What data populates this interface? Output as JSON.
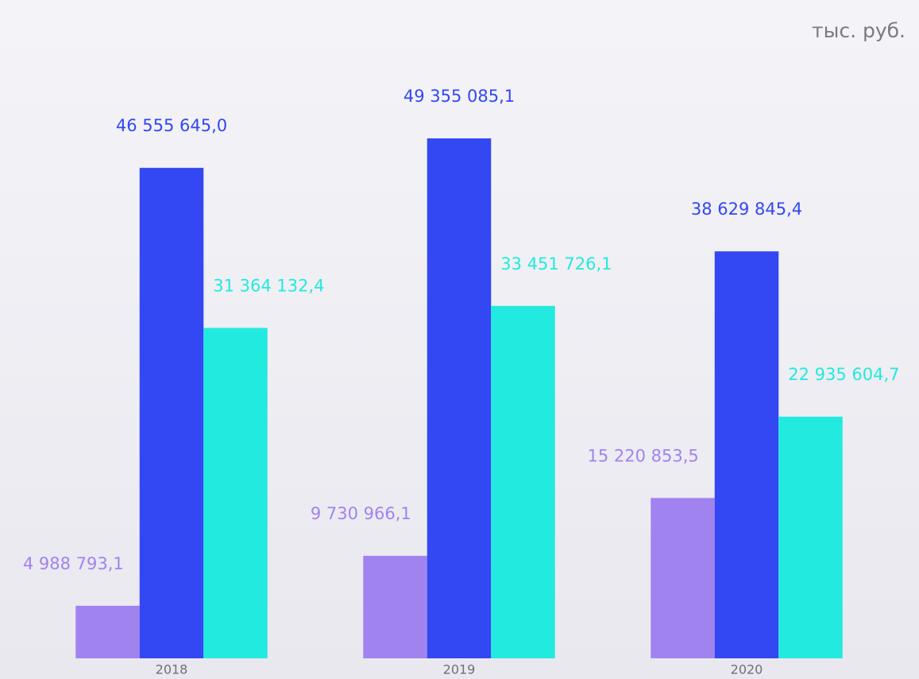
{
  "chart_data": {
    "type": "bar",
    "unit": "тыс. руб.",
    "categories": [
      "2018",
      "2019",
      "2020"
    ],
    "series": [
      {
        "color": "#a183f0",
        "values": [
          4988793.1,
          9730966.1,
          15220853.5
        ],
        "value_labels": [
          "4 988 793,1",
          "9 730 966,1",
          "15 220 853,5"
        ]
      },
      {
        "color": "#3347f2",
        "values": [
          46555645.0,
          49355085.1,
          38629845.4
        ],
        "value_labels": [
          "46 555 645,0",
          "49 355 085,1",
          "38 629 845,4"
        ]
      },
      {
        "color": "#22eadf",
        "values": [
          31364132.4,
          33451726.1,
          22935604.7
        ],
        "value_labels": [
          "31 364 132,4",
          "33 451 726,1",
          "22 935 604,7"
        ]
      }
    ],
    "ylim": [
      0,
      60000000
    ]
  }
}
